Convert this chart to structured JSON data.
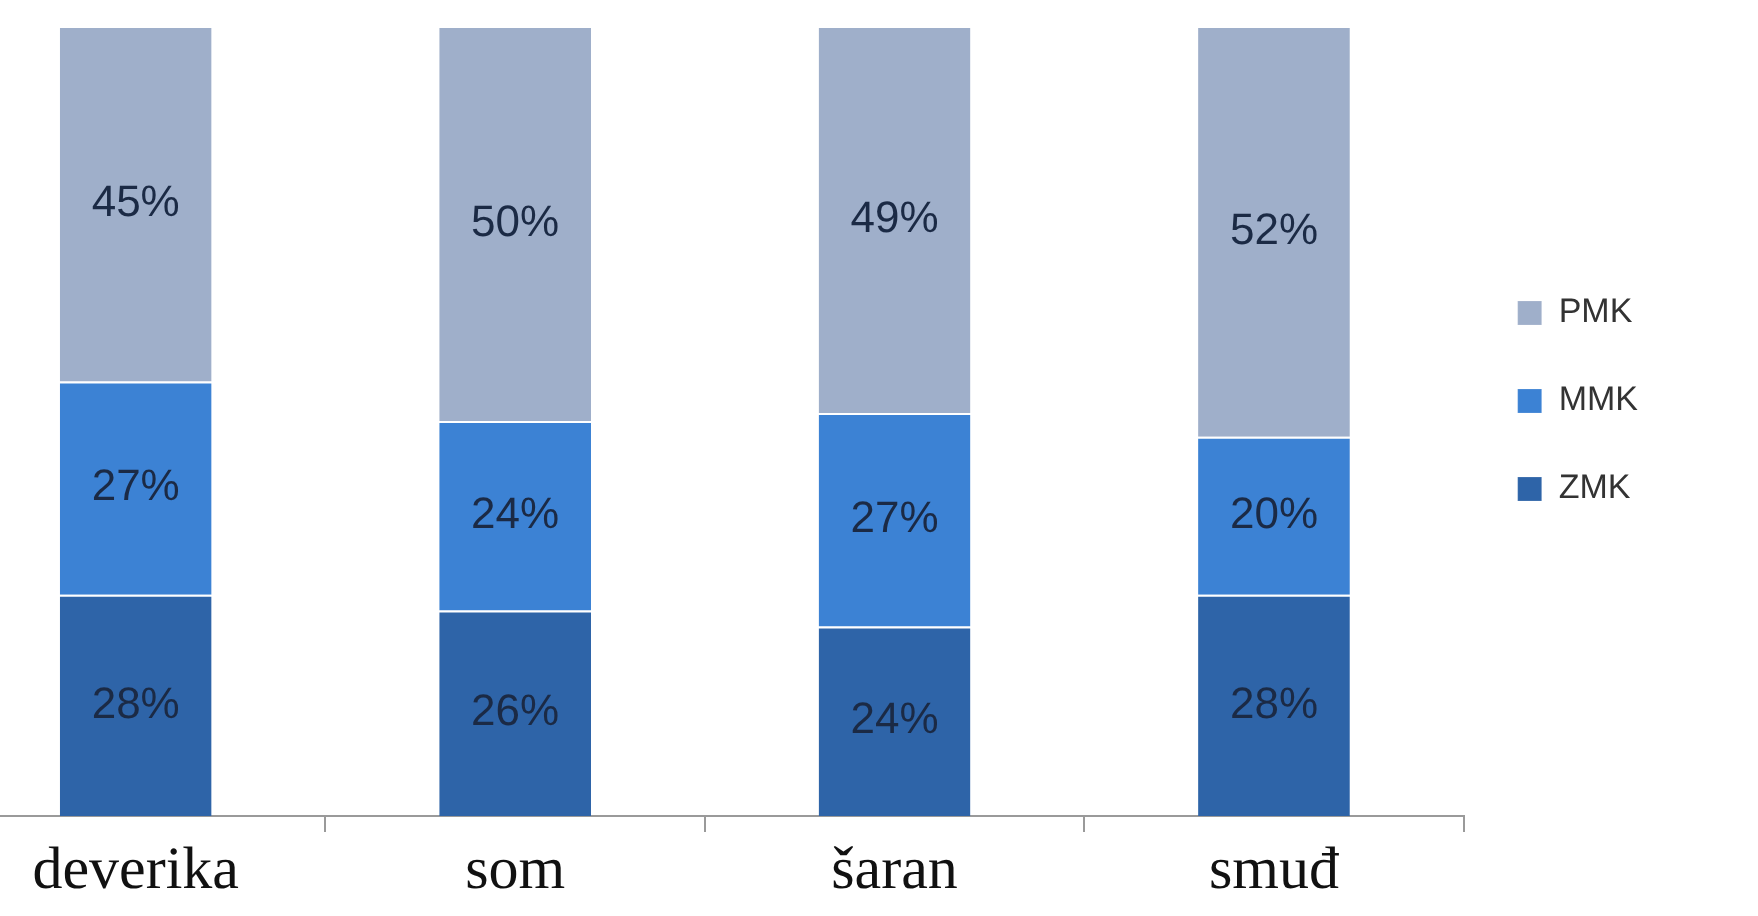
{
  "chart_data": {
    "type": "bar",
    "categories": [
      "deverika",
      "som",
      "šaran",
      "smuđ"
    ],
    "stacked": true,
    "series": [
      {
        "name": "ZMK",
        "color": "#2e64a8",
        "values": [
          28,
          26,
          24,
          28
        ],
        "value_labels": [
          "28%",
          "26%",
          "24%",
          "28%"
        ]
      },
      {
        "name": "MMK",
        "color": "#3c82d4",
        "values": [
          27,
          24,
          27,
          20
        ],
        "value_labels": [
          "27%",
          "24%",
          "27%",
          "20%"
        ]
      },
      {
        "name": "PMK",
        "color": "#9fafca",
        "values": [
          45,
          50,
          49,
          52
        ],
        "value_labels": [
          "45%",
          "50%",
          "49%",
          "52%"
        ]
      }
    ],
    "ylim": [
      0,
      100
    ],
    "legend": "right",
    "tick_labels": "x"
  }
}
